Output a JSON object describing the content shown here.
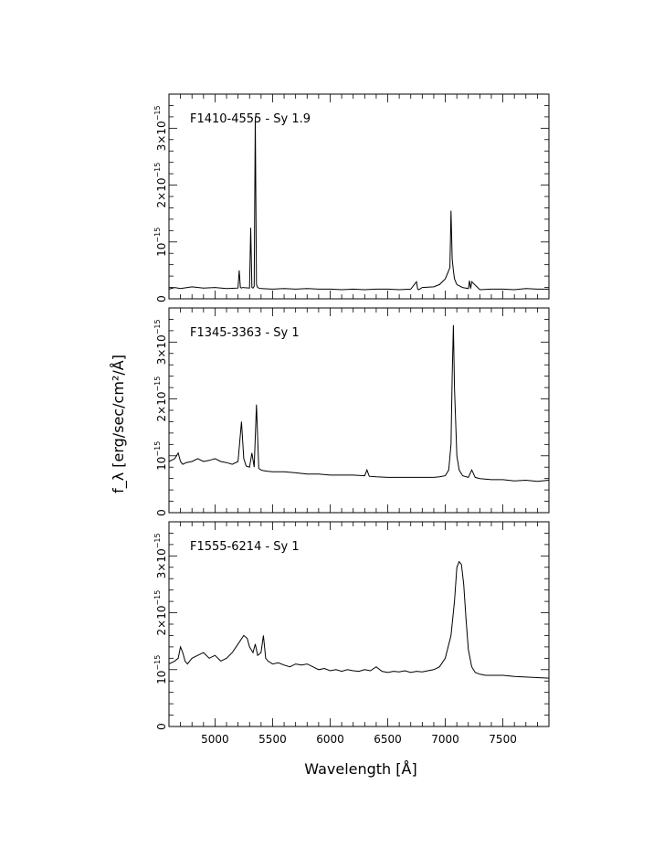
{
  "chart_data": [
    {
      "type": "line",
      "title": "F1410-4555 - Sy 1.9",
      "xlabel": "",
      "ylabel": "",
      "xlim": [
        4600,
        7900
      ],
      "ylim": [
        0,
        3.6
      ],
      "y_unit_exponent": "-15",
      "ytick_labels": [
        {
          "value": 1,
          "coeff": "10",
          "exp": "−15"
        },
        {
          "value": 2,
          "coeff": "2×10",
          "exp": "−15"
        },
        {
          "value": 3,
          "coeff": "3×10",
          "exp": "−15"
        }
      ],
      "xtick_labels": [],
      "series": [
        {
          "x": [
            4600,
            4650,
            4700,
            4800,
            4900,
            5000,
            5100,
            5200,
            5210,
            5220,
            5230,
            5240,
            5300,
            5310,
            5320,
            5330,
            5340,
            5350,
            5360,
            5370,
            5380,
            5400,
            5500,
            5600,
            5700,
            5800,
            5900,
            6000,
            6100,
            6200,
            6300,
            6400,
            6500,
            6600,
            6700,
            6750,
            6760,
            6770,
            6800,
            6900,
            6950,
            7000,
            7020,
            7040,
            7050,
            7060,
            7070,
            7080,
            7100,
            7150,
            7200,
            7210,
            7220,
            7230,
            7300,
            7400,
            7500,
            7600,
            7700,
            7800,
            7900
          ],
          "values": [
            0.17,
            0.2,
            0.18,
            0.21,
            0.19,
            0.2,
            0.18,
            0.19,
            0.5,
            0.2,
            0.19,
            0.2,
            0.19,
            1.25,
            0.2,
            0.19,
            0.22,
            3.2,
            0.25,
            0.2,
            0.19,
            0.18,
            0.17,
            0.18,
            0.17,
            0.18,
            0.17,
            0.17,
            0.16,
            0.17,
            0.16,
            0.17,
            0.17,
            0.16,
            0.17,
            0.3,
            0.17,
            0.16,
            0.2,
            0.21,
            0.25,
            0.35,
            0.45,
            0.55,
            1.55,
            0.7,
            0.5,
            0.35,
            0.25,
            0.2,
            0.18,
            0.32,
            0.18,
            0.3,
            0.16,
            0.17,
            0.17,
            0.16,
            0.18,
            0.17,
            0.17
          ]
        }
      ]
    },
    {
      "type": "line",
      "title": "F1345-3363 - Sy 1",
      "xlabel": "",
      "ylabel": "",
      "xlim": [
        4600,
        7900
      ],
      "ylim": [
        0,
        3.6
      ],
      "y_unit_exponent": "-15",
      "ytick_labels": [
        {
          "value": 1,
          "coeff": "10",
          "exp": "−15"
        },
        {
          "value": 2,
          "coeff": "2×10",
          "exp": "−15"
        },
        {
          "value": 3,
          "coeff": "3×10",
          "exp": "−15"
        }
      ],
      "xtick_labels": [],
      "series": [
        {
          "x": [
            4600,
            4650,
            4680,
            4700,
            4720,
            4750,
            4800,
            4850,
            4900,
            4950,
            5000,
            5050,
            5100,
            5150,
            5200,
            5230,
            5250,
            5270,
            5300,
            5320,
            5340,
            5360,
            5380,
            5400,
            5420,
            5450,
            5500,
            5600,
            5700,
            5800,
            5900,
            6000,
            6100,
            6200,
            6300,
            6320,
            6340,
            6400,
            6500,
            6600,
            6700,
            6800,
            6900,
            6950,
            7000,
            7030,
            7050,
            7060,
            7070,
            7080,
            7090,
            7100,
            7120,
            7150,
            7200,
            7230,
            7260,
            7300,
            7400,
            7500,
            7600,
            7700,
            7800,
            7900
          ],
          "values": [
            0.9,
            0.95,
            1.05,
            0.9,
            0.85,
            0.88,
            0.9,
            0.95,
            0.9,
            0.92,
            0.95,
            0.9,
            0.88,
            0.85,
            0.9,
            1.6,
            0.95,
            0.82,
            0.8,
            1.05,
            0.8,
            1.9,
            0.78,
            0.75,
            0.74,
            0.73,
            0.72,
            0.72,
            0.7,
            0.68,
            0.68,
            0.66,
            0.66,
            0.66,
            0.65,
            0.75,
            0.64,
            0.63,
            0.62,
            0.62,
            0.62,
            0.62,
            0.62,
            0.63,
            0.65,
            0.75,
            1.2,
            2.4,
            3.3,
            2.2,
            1.6,
            1.0,
            0.75,
            0.65,
            0.62,
            0.75,
            0.62,
            0.6,
            0.58,
            0.58,
            0.56,
            0.57,
            0.55,
            0.57
          ]
        }
      ]
    },
    {
      "type": "line",
      "title": "F1555-6214 - Sy 1",
      "xlabel": "Wavelength [Å]",
      "ylabel": "f_λ [erg/sec/cm²/Å]",
      "xlim": [
        4600,
        7900
      ],
      "ylim": [
        0,
        3.6
      ],
      "y_unit_exponent": "-15",
      "ytick_labels": [
        {
          "value": 1,
          "coeff": "10",
          "exp": "−15"
        },
        {
          "value": 2,
          "coeff": "2×10",
          "exp": "−15"
        },
        {
          "value": 3,
          "coeff": "3×10",
          "exp": "−15"
        }
      ],
      "xtick_labels": [
        "5000",
        "5500",
        "6000",
        "6500",
        "7000",
        "7500"
      ],
      "xtick_values": [
        5000,
        5500,
        6000,
        6500,
        7000,
        7500
      ],
      "series": [
        {
          "x": [
            4600,
            4650,
            4680,
            4700,
            4720,
            4740,
            4760,
            4800,
            4850,
            4900,
            4950,
            5000,
            5050,
            5100,
            5150,
            5200,
            5250,
            5280,
            5300,
            5330,
            5350,
            5370,
            5400,
            5420,
            5440,
            5460,
            5500,
            5550,
            5600,
            5650,
            5700,
            5750,
            5800,
            5850,
            5900,
            5950,
            6000,
            6050,
            6100,
            6150,
            6200,
            6250,
            6300,
            6350,
            6400,
            6450,
            6500,
            6550,
            6600,
            6650,
            6700,
            6750,
            6800,
            6850,
            6900,
            6950,
            7000,
            7050,
            7080,
            7100,
            7120,
            7140,
            7160,
            7180,
            7200,
            7230,
            7260,
            7300,
            7350,
            7400,
            7500,
            7600,
            7700,
            7800,
            7900
          ],
          "values": [
            1.1,
            1.15,
            1.2,
            1.4,
            1.3,
            1.15,
            1.1,
            1.2,
            1.25,
            1.3,
            1.2,
            1.25,
            1.15,
            1.2,
            1.3,
            1.45,
            1.6,
            1.55,
            1.4,
            1.3,
            1.45,
            1.25,
            1.3,
            1.6,
            1.2,
            1.15,
            1.1,
            1.12,
            1.08,
            1.05,
            1.1,
            1.08,
            1.1,
            1.05,
            1.0,
            1.02,
            0.98,
            1.0,
            0.97,
            1.0,
            0.98,
            0.97,
            1.0,
            0.98,
            1.05,
            0.97,
            0.95,
            0.97,
            0.96,
            0.98,
            0.95,
            0.97,
            0.96,
            0.98,
            1.0,
            1.05,
            1.2,
            1.6,
            2.2,
            2.8,
            2.9,
            2.85,
            2.5,
            1.9,
            1.35,
            1.05,
            0.95,
            0.92,
            0.9,
            0.9,
            0.9,
            0.88,
            0.87,
            0.86,
            0.85
          ]
        }
      ]
    }
  ]
}
